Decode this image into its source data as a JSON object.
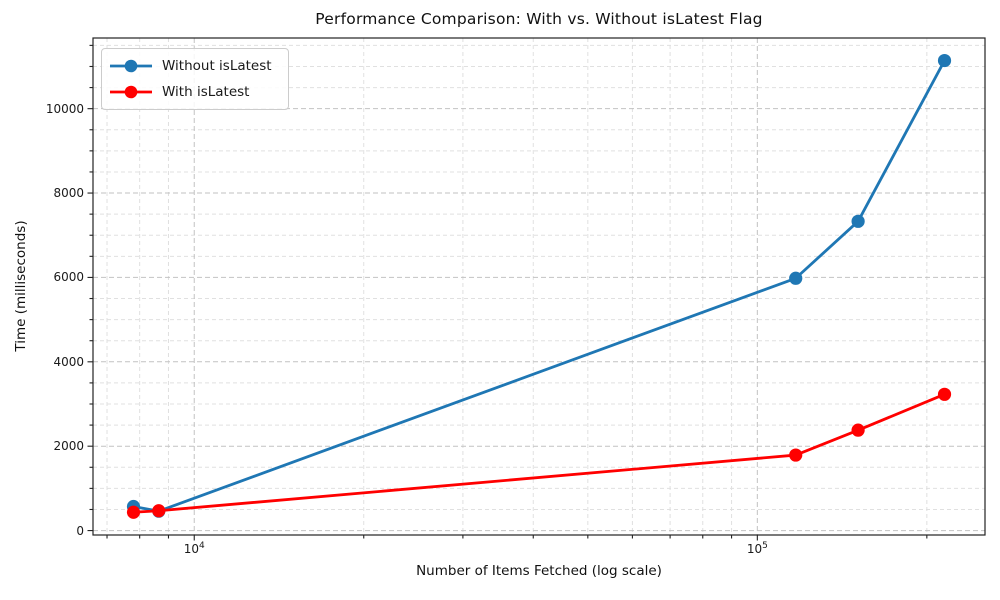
{
  "chart_data": {
    "type": "line",
    "title": "Performance Comparison: With vs. Without isLatest Flag",
    "xlabel": "Number of Items Fetched (log scale)",
    "ylabel": "Time (milliseconds)",
    "x_scale": "log",
    "grid": "on",
    "legend_position": "upper left",
    "xlim": [
      6610,
      253700
    ],
    "ylim": [
      -105,
      11675
    ],
    "x": [
      7800,
      8650,
      117000,
      151000,
      215000
    ],
    "series": [
      {
        "name": "Without isLatest",
        "color": "#1f77b4",
        "values": [
          570,
          460,
          5980,
          7330,
          11140
        ]
      },
      {
        "name": "With isLatest",
        "color": "#ff0000",
        "values": [
          435,
          470,
          1790,
          2380,
          3230
        ]
      }
    ],
    "y_ticks": [
      0,
      2000,
      4000,
      6000,
      8000,
      10000
    ],
    "y_minor_step": 500,
    "y_minor_max": 11500,
    "x_major_ticks": [
      {
        "base": "10",
        "exp": "4",
        "value": 10000
      },
      {
        "base": "10",
        "exp": "5",
        "value": 100000
      }
    ],
    "x_minor_ticks": [
      7000,
      8000,
      9000,
      20000,
      30000,
      40000,
      50000,
      60000,
      70000,
      80000,
      90000,
      200000
    ]
  }
}
